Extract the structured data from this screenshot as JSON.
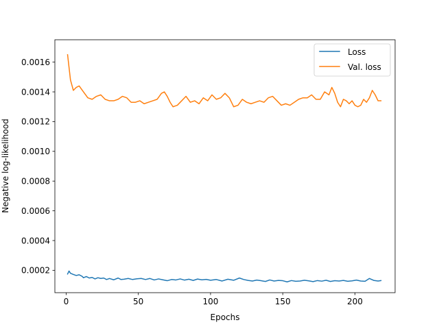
{
  "chart_data": {
    "type": "line",
    "title": "",
    "xlabel": "Epochs",
    "ylabel": "Negative log-likelihood",
    "xlim": [
      -7.8,
      227.8
    ],
    "ylim": [
      4.95e-05,
      0.0017505
    ],
    "xticks": [
      0,
      50,
      100,
      150,
      200
    ],
    "yticks": [
      0.0002,
      0.0004,
      0.0006,
      0.0008,
      0.001,
      0.0012,
      0.0014,
      0.0016
    ],
    "xtick_labels": [
      "0",
      "50",
      "100",
      "150",
      "200"
    ],
    "ytick_labels": [
      "0.0002",
      "0.0004",
      "0.0006",
      "0.0008",
      "0.0010",
      "0.0012",
      "0.0014",
      "0.0016"
    ],
    "grid": false,
    "legend_position": "top-right",
    "series": [
      {
        "name": "Loss",
        "color": "#1f77b4",
        "x": [
          1,
          2,
          3,
          5,
          7,
          9,
          11,
          12,
          14,
          16,
          18,
          20,
          22,
          24,
          26,
          28,
          30,
          33,
          36,
          38,
          40,
          43,
          46,
          49,
          52,
          55,
          58,
          61,
          64,
          67,
          70,
          73,
          76,
          79,
          82,
          85,
          88,
          91,
          94,
          97,
          100,
          104,
          108,
          112,
          116,
          120,
          123,
          126,
          129,
          132,
          135,
          138,
          141,
          144,
          147,
          150,
          153,
          156,
          159,
          162,
          165,
          168,
          171,
          174,
          177,
          180,
          183,
          186,
          189,
          192,
          195,
          198,
          201,
          204,
          207,
          210,
          213,
          216,
          218
        ],
        "y": [
          0.000175,
          0.000195,
          0.00018,
          0.000172,
          0.000165,
          0.00017,
          0.00016,
          0.00015,
          0.000158,
          0.000148,
          0.000152,
          0.000142,
          0.00015,
          0.000145,
          0.000148,
          0.000138,
          0.000145,
          0.000136,
          0.000148,
          0.000138,
          0.00014,
          0.000145,
          0.000138,
          0.000143,
          0.000145,
          0.000138,
          0.000145,
          0.000135,
          0.000142,
          0.000136,
          0.00013,
          0.000138,
          0.000135,
          0.000142,
          0.000134,
          0.00014,
          0.000132,
          0.000141,
          0.000136,
          0.000139,
          0.000133,
          0.000138,
          0.000128,
          0.00014,
          0.000133,
          0.000148,
          0.000138,
          0.000132,
          0.000128,
          0.000134,
          0.00013,
          0.000125,
          0.000135,
          0.000128,
          0.000132,
          0.00013,
          0.000122,
          0.000131,
          0.000126,
          0.000128,
          0.000133,
          0.000129,
          0.000124,
          0.000131,
          0.000127,
          0.000133,
          0.000125,
          0.00013,
          0.000128,
          0.000132,
          0.000126,
          0.000129,
          0.000134,
          0.000128,
          0.000126,
          0.000145,
          0.000132,
          0.000128,
          0.000131
        ]
      },
      {
        "name": "Val. loss",
        "color": "#ff7f0e",
        "x": [
          1,
          3,
          5,
          7,
          9,
          12,
          15,
          18,
          21,
          24,
          27,
          30,
          33,
          36,
          39,
          42,
          45,
          48,
          51,
          54,
          57,
          60,
          63,
          66,
          68,
          70,
          72,
          74,
          77,
          80,
          83,
          86,
          89,
          92,
          95,
          98,
          101,
          104,
          107,
          110,
          113,
          116,
          119,
          122,
          125,
          128,
          131,
          134,
          137,
          140,
          143,
          146,
          149,
          152,
          155,
          158,
          161,
          164,
          167,
          170,
          173,
          176,
          179,
          182,
          184,
          186,
          188,
          190,
          192,
          194,
          196,
          198,
          200,
          202,
          204,
          206,
          208,
          210,
          212,
          214,
          216,
          218
        ],
        "y": [
          0.00165,
          0.00148,
          0.00141,
          0.00143,
          0.00144,
          0.0014,
          0.00136,
          0.00135,
          0.00137,
          0.00138,
          0.00135,
          0.00134,
          0.00134,
          0.00135,
          0.00137,
          0.00136,
          0.00133,
          0.00133,
          0.00134,
          0.00132,
          0.00133,
          0.00134,
          0.00135,
          0.00139,
          0.0014,
          0.00137,
          0.00133,
          0.0013,
          0.00131,
          0.00134,
          0.00137,
          0.00133,
          0.00134,
          0.00132,
          0.00136,
          0.00134,
          0.00138,
          0.00135,
          0.00136,
          0.00139,
          0.00136,
          0.0013,
          0.00131,
          0.00135,
          0.00133,
          0.00132,
          0.00133,
          0.00134,
          0.00133,
          0.00136,
          0.00137,
          0.00134,
          0.00131,
          0.00132,
          0.00131,
          0.00133,
          0.00135,
          0.00136,
          0.00136,
          0.00138,
          0.00135,
          0.00135,
          0.0014,
          0.00138,
          0.00143,
          0.00139,
          0.00133,
          0.0013,
          0.00135,
          0.00134,
          0.00132,
          0.00134,
          0.00131,
          0.0013,
          0.00131,
          0.00135,
          0.00133,
          0.00136,
          0.00141,
          0.00138,
          0.00134,
          0.00134
        ]
      }
    ]
  }
}
